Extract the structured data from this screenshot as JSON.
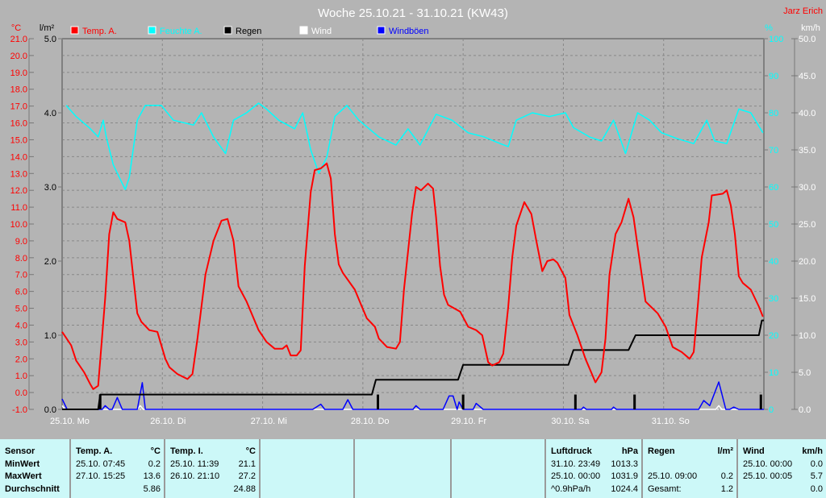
{
  "header": {
    "title": "Woche 25.10.21 - 31.10.21 (KW43)",
    "author": "Jarz Erich"
  },
  "chart_data": {
    "type": "line",
    "title": "Woche 25.10.21 - 31.10.21 (KW43)",
    "x_unit": "days since 25.10. 00:00",
    "xlim": [
      0,
      7
    ],
    "day_labels": [
      "25.10.  Mo",
      "26.10.  Di",
      "27.10.  Mi",
      "28.10.  Do",
      "29.10.  Fr",
      "30.10.  Sa",
      "31.10.  So"
    ],
    "axes": {
      "temp": {
        "label": "°C",
        "range": [
          -1,
          21
        ],
        "ticks": [
          "-1.0",
          "0.0",
          "1.0",
          "2.0",
          "3.0",
          "4.0",
          "5.0",
          "6.0",
          "7.0",
          "8.0",
          "9.0",
          "10.0",
          "11.0",
          "12.0",
          "13.0",
          "14.0",
          "15.0",
          "16.0",
          "17.0",
          "18.0",
          "19.0",
          "20.0",
          "21.0"
        ],
        "color": "#ff0000"
      },
      "rain": {
        "label": "l/m²",
        "range": [
          0,
          5
        ],
        "ticks": [
          "0.0",
          "1.0",
          "2.0",
          "3.0",
          "4.0",
          "5.0"
        ],
        "color": "#000000"
      },
      "humidity": {
        "label": "%",
        "range": [
          0,
          100
        ],
        "ticks": [
          "0",
          "10",
          "20",
          "30",
          "40",
          "50",
          "60",
          "70",
          "80",
          "90",
          "100"
        ],
        "color": "#00ffff"
      },
      "wind": {
        "label": "km/h",
        "range": [
          0,
          50
        ],
        "ticks": [
          "0.0",
          "5.0",
          "10.0",
          "15.0",
          "20.0",
          "25.0",
          "30.0",
          "35.0",
          "40.0",
          "45.0",
          "50.0"
        ],
        "color": "#ffffff"
      }
    },
    "legend": [
      {
        "name": "Temp. A.",
        "color": "#ff0000"
      },
      {
        "name": "Feuchte A.",
        "color": "#00ffff"
      },
      {
        "name": "Regen",
        "color": "#000000"
      },
      {
        "name": "Wind",
        "color": "#ffffff"
      },
      {
        "name": "Windböen",
        "color": "#0000ff"
      }
    ],
    "legend_position": "top",
    "grid": true,
    "series": [
      {
        "name": "Temp. A.",
        "axis": "temp",
        "color": "#ff0000",
        "points": [
          [
            0,
            3.6
          ],
          [
            0.09,
            2.8
          ],
          [
            0.14,
            1.9
          ],
          [
            0.22,
            1.2
          ],
          [
            0.28,
            0.5
          ],
          [
            0.31,
            0.2
          ],
          [
            0.36,
            0.4
          ],
          [
            0.43,
            5.6
          ],
          [
            0.47,
            9.4
          ],
          [
            0.51,
            10.7
          ],
          [
            0.55,
            10.3
          ],
          [
            0.63,
            10.1
          ],
          [
            0.67,
            9.0
          ],
          [
            0.75,
            4.7
          ],
          [
            0.79,
            4.2
          ],
          [
            0.87,
            3.7
          ],
          [
            0.95,
            3.6
          ],
          [
            1.03,
            2.0
          ],
          [
            1.07,
            1.5
          ],
          [
            1.15,
            1.1
          ],
          [
            1.25,
            0.8
          ],
          [
            1.3,
            1.1
          ],
          [
            1.35,
            3.2
          ],
          [
            1.43,
            7.0
          ],
          [
            1.51,
            9.0
          ],
          [
            1.59,
            10.2
          ],
          [
            1.65,
            10.3
          ],
          [
            1.71,
            9.0
          ],
          [
            1.76,
            6.3
          ],
          [
            1.84,
            5.4
          ],
          [
            1.96,
            3.7
          ],
          [
            2.04,
            3.0
          ],
          [
            2.12,
            2.6
          ],
          [
            2.2,
            2.6
          ],
          [
            2.24,
            2.8
          ],
          [
            2.28,
            2.2
          ],
          [
            2.34,
            2.2
          ],
          [
            2.38,
            2.5
          ],
          [
            2.42,
            7.5
          ],
          [
            2.48,
            11.9
          ],
          [
            2.52,
            13.2
          ],
          [
            2.58,
            13.3
          ],
          [
            2.64,
            13.6
          ],
          [
            2.68,
            12.7
          ],
          [
            2.72,
            9.4
          ],
          [
            2.76,
            7.6
          ],
          [
            2.8,
            7.1
          ],
          [
            2.92,
            6.1
          ],
          [
            2.99,
            5.1
          ],
          [
            3.04,
            4.4
          ],
          [
            3.12,
            3.9
          ],
          [
            3.16,
            3.2
          ],
          [
            3.24,
            2.7
          ],
          [
            3.33,
            2.6
          ],
          [
            3.37,
            3.0
          ],
          [
            3.41,
            6.1
          ],
          [
            3.49,
            10.6
          ],
          [
            3.53,
            12.2
          ],
          [
            3.58,
            12.0
          ],
          [
            3.65,
            12.4
          ],
          [
            3.7,
            12.1
          ],
          [
            3.73,
            10.4
          ],
          [
            3.77,
            7.5
          ],
          [
            3.81,
            5.8
          ],
          [
            3.85,
            5.2
          ],
          [
            3.97,
            4.8
          ],
          [
            4.05,
            3.9
          ],
          [
            4.13,
            3.7
          ],
          [
            4.19,
            3.4
          ],
          [
            4.25,
            1.8
          ],
          [
            4.29,
            1.6
          ],
          [
            4.36,
            1.8
          ],
          [
            4.4,
            2.3
          ],
          [
            4.45,
            5.1
          ],
          [
            4.49,
            8.0
          ],
          [
            4.53,
            9.9
          ],
          [
            4.61,
            11.3
          ],
          [
            4.68,
            10.6
          ],
          [
            4.73,
            9.0
          ],
          [
            4.79,
            7.2
          ],
          [
            4.84,
            7.8
          ],
          [
            4.9,
            7.9
          ],
          [
            4.94,
            7.7
          ],
          [
            5.02,
            6.8
          ],
          [
            5.06,
            4.6
          ],
          [
            5.14,
            3.4
          ],
          [
            5.22,
            2.0
          ],
          [
            5.27,
            1.3
          ],
          [
            5.32,
            0.6
          ],
          [
            5.38,
            1.2
          ],
          [
            5.42,
            3.2
          ],
          [
            5.46,
            7.0
          ],
          [
            5.52,
            9.4
          ],
          [
            5.58,
            10.1
          ],
          [
            5.65,
            11.5
          ],
          [
            5.7,
            10.4
          ],
          [
            5.74,
            8.7
          ],
          [
            5.82,
            5.4
          ],
          [
            5.94,
            4.7
          ],
          [
            6.02,
            3.9
          ],
          [
            6.09,
            2.7
          ],
          [
            6.18,
            2.4
          ],
          [
            6.26,
            2.0
          ],
          [
            6.3,
            2.4
          ],
          [
            6.34,
            5.1
          ],
          [
            6.38,
            8.0
          ],
          [
            6.45,
            10.1
          ],
          [
            6.48,
            11.7
          ],
          [
            6.59,
            11.8
          ],
          [
            6.63,
            12.0
          ],
          [
            6.67,
            11.1
          ],
          [
            6.71,
            9.4
          ],
          [
            6.75,
            6.9
          ],
          [
            6.79,
            6.5
          ],
          [
            6.87,
            6.1
          ],
          [
            6.95,
            5.1
          ],
          [
            6.99,
            4.5
          ]
        ]
      },
      {
        "name": "Feuchte A.",
        "axis": "humidity",
        "color": "#00ffff",
        "points": [
          [
            0.04,
            82
          ],
          [
            0.14,
            79
          ],
          [
            0.27,
            76
          ],
          [
            0.36,
            73.5
          ],
          [
            0.41,
            78
          ],
          [
            0.44,
            73.5
          ],
          [
            0.51,
            66
          ],
          [
            0.59,
            61.5
          ],
          [
            0.63,
            59.3
          ],
          [
            0.67,
            62.6
          ],
          [
            0.75,
            78
          ],
          [
            0.83,
            82
          ],
          [
            0.99,
            82
          ],
          [
            1.11,
            78
          ],
          [
            1.31,
            76.7
          ],
          [
            1.39,
            80
          ],
          [
            1.51,
            73.5
          ],
          [
            1.63,
            69
          ],
          [
            1.71,
            78
          ],
          [
            1.84,
            80
          ],
          [
            1.96,
            82.6
          ],
          [
            2.04,
            81
          ],
          [
            2.16,
            78
          ],
          [
            2.32,
            75.7
          ],
          [
            2.4,
            80
          ],
          [
            2.48,
            70
          ],
          [
            2.56,
            63.7
          ],
          [
            2.64,
            68
          ],
          [
            2.72,
            79
          ],
          [
            2.84,
            82
          ],
          [
            2.96,
            78
          ],
          [
            3.16,
            73.5
          ],
          [
            3.33,
            71.3
          ],
          [
            3.45,
            75.7
          ],
          [
            3.57,
            71.3
          ],
          [
            3.73,
            79.6
          ],
          [
            3.89,
            78
          ],
          [
            4.05,
            74.6
          ],
          [
            4.21,
            73.5
          ],
          [
            4.37,
            71.7
          ],
          [
            4.45,
            70.9
          ],
          [
            4.53,
            78
          ],
          [
            4.69,
            80
          ],
          [
            4.86,
            79
          ],
          [
            5.02,
            80
          ],
          [
            5.1,
            76
          ],
          [
            5.26,
            73.5
          ],
          [
            5.38,
            72.4
          ],
          [
            5.5,
            78
          ],
          [
            5.62,
            69
          ],
          [
            5.74,
            80
          ],
          [
            5.86,
            78
          ],
          [
            5.98,
            74.6
          ],
          [
            6.14,
            73
          ],
          [
            6.3,
            71.7
          ],
          [
            6.43,
            78
          ],
          [
            6.51,
            72.4
          ],
          [
            6.63,
            71.7
          ],
          [
            6.75,
            81
          ],
          [
            6.87,
            80
          ],
          [
            6.99,
            74.6
          ]
        ]
      },
      {
        "name": "Regen",
        "axis": "rain",
        "color": "#000000",
        "points": [
          [
            0,
            0
          ],
          [
            0.36,
            0
          ],
          [
            0.38,
            0.2
          ],
          [
            3.09,
            0.2
          ],
          [
            3.13,
            0.4
          ],
          [
            3.95,
            0.4
          ],
          [
            4.0,
            0.6
          ],
          [
            5.05,
            0.6
          ],
          [
            5.1,
            0.8
          ],
          [
            5.65,
            0.8
          ],
          [
            5.72,
            1.0
          ],
          [
            6.95,
            1.0
          ],
          [
            6.98,
            1.2
          ],
          [
            7,
            1.2
          ]
        ]
      },
      {
        "name": "Regen pro Stunde",
        "axis": "rain",
        "color": "#000000",
        "type": "bar",
        "points": [
          [
            0.38,
            0.2
          ],
          [
            3.15,
            0.2
          ],
          [
            4.0,
            0.2
          ],
          [
            5.12,
            0.2
          ],
          [
            5.71,
            0.2
          ],
          [
            6.97,
            0.2
          ]
        ]
      },
      {
        "name": "Wind",
        "axis": "wind",
        "color": "#ffffff",
        "points": [
          [
            0,
            0.5
          ],
          [
            0.03,
            0
          ],
          [
            0.75,
            0
          ],
          [
            0.78,
            0.5
          ],
          [
            0.81,
            0
          ],
          [
            6.52,
            0
          ],
          [
            6.55,
            0.5
          ],
          [
            6.58,
            0
          ],
          [
            7,
            0
          ]
        ]
      },
      {
        "name": "Windböen",
        "axis": "wind",
        "color": "#0000ff",
        "points": [
          [
            0,
            1.4
          ],
          [
            0.05,
            0
          ],
          [
            0.4,
            0
          ],
          [
            0.43,
            0.5
          ],
          [
            0.47,
            0
          ],
          [
            0.5,
            0
          ],
          [
            0.55,
            1.6
          ],
          [
            0.6,
            0
          ],
          [
            0.75,
            0
          ],
          [
            0.8,
            3.6
          ],
          [
            0.83,
            0
          ],
          [
            2.5,
            0
          ],
          [
            2.58,
            0.7
          ],
          [
            2.62,
            0
          ],
          [
            2.8,
            0
          ],
          [
            2.85,
            1.3
          ],
          [
            2.9,
            0
          ],
          [
            3.5,
            0
          ],
          [
            3.53,
            0.5
          ],
          [
            3.57,
            0
          ],
          [
            3.8,
            0
          ],
          [
            3.86,
            1.8
          ],
          [
            3.9,
            1.8
          ],
          [
            3.94,
            0
          ],
          [
            3.96,
            1.0
          ],
          [
            4.0,
            0
          ],
          [
            4.1,
            0
          ],
          [
            4.13,
            0.8
          ],
          [
            4.2,
            0
          ],
          [
            5.18,
            0
          ],
          [
            5.2,
            0.3
          ],
          [
            5.23,
            0
          ],
          [
            5.48,
            0
          ],
          [
            5.5,
            0.3
          ],
          [
            5.53,
            0
          ],
          [
            6.35,
            0
          ],
          [
            6.4,
            1.2
          ],
          [
            6.46,
            0.5
          ],
          [
            6.55,
            3.7
          ],
          [
            6.62,
            0
          ],
          [
            6.66,
            0
          ],
          [
            6.7,
            0.3
          ],
          [
            6.75,
            0
          ],
          [
            7,
            0
          ]
        ]
      }
    ]
  },
  "table": {
    "sensor": {
      "header": "Sensor",
      "min": "MinWert",
      "max": "MaxWert",
      "avg": "Durchschnitt"
    },
    "temp_a": {
      "header": "Temp. A.",
      "unit": "°C",
      "min_time": "25.10.  07:45",
      "min": "0.2",
      "max_time": "27.10.  15:25",
      "max": "13.6",
      "avg": "5.86"
    },
    "temp_i": {
      "header": "Temp. I.",
      "unit": "°C",
      "min_time": "25.10.  11:39",
      "min": "21.1",
      "max_time": "26.10.  21:10",
      "max": "27.2",
      "avg": "24.88"
    },
    "pressure": {
      "header": "Luftdruck",
      "unit": "hPa",
      "min_time": "31.10.  23:49",
      "min": "1013.3",
      "max_time": "25.10.  00:00",
      "max": "1031.9",
      "trend": "^0.9hPa/h",
      "avg": "1024.4"
    },
    "rain": {
      "header": "Regen",
      "unit": "l/m²",
      "max_time": "25.10.  09:00",
      "max": "0.2",
      "total_label": "Gesamt:",
      "total": "1.2"
    },
    "wind": {
      "header": "Wind",
      "unit": "km/h",
      "min_time": "25.10.  00:00",
      "min": "0.0",
      "max_time": "25.10.  00:05",
      "max": "5.7",
      "avg": "0.0"
    }
  }
}
